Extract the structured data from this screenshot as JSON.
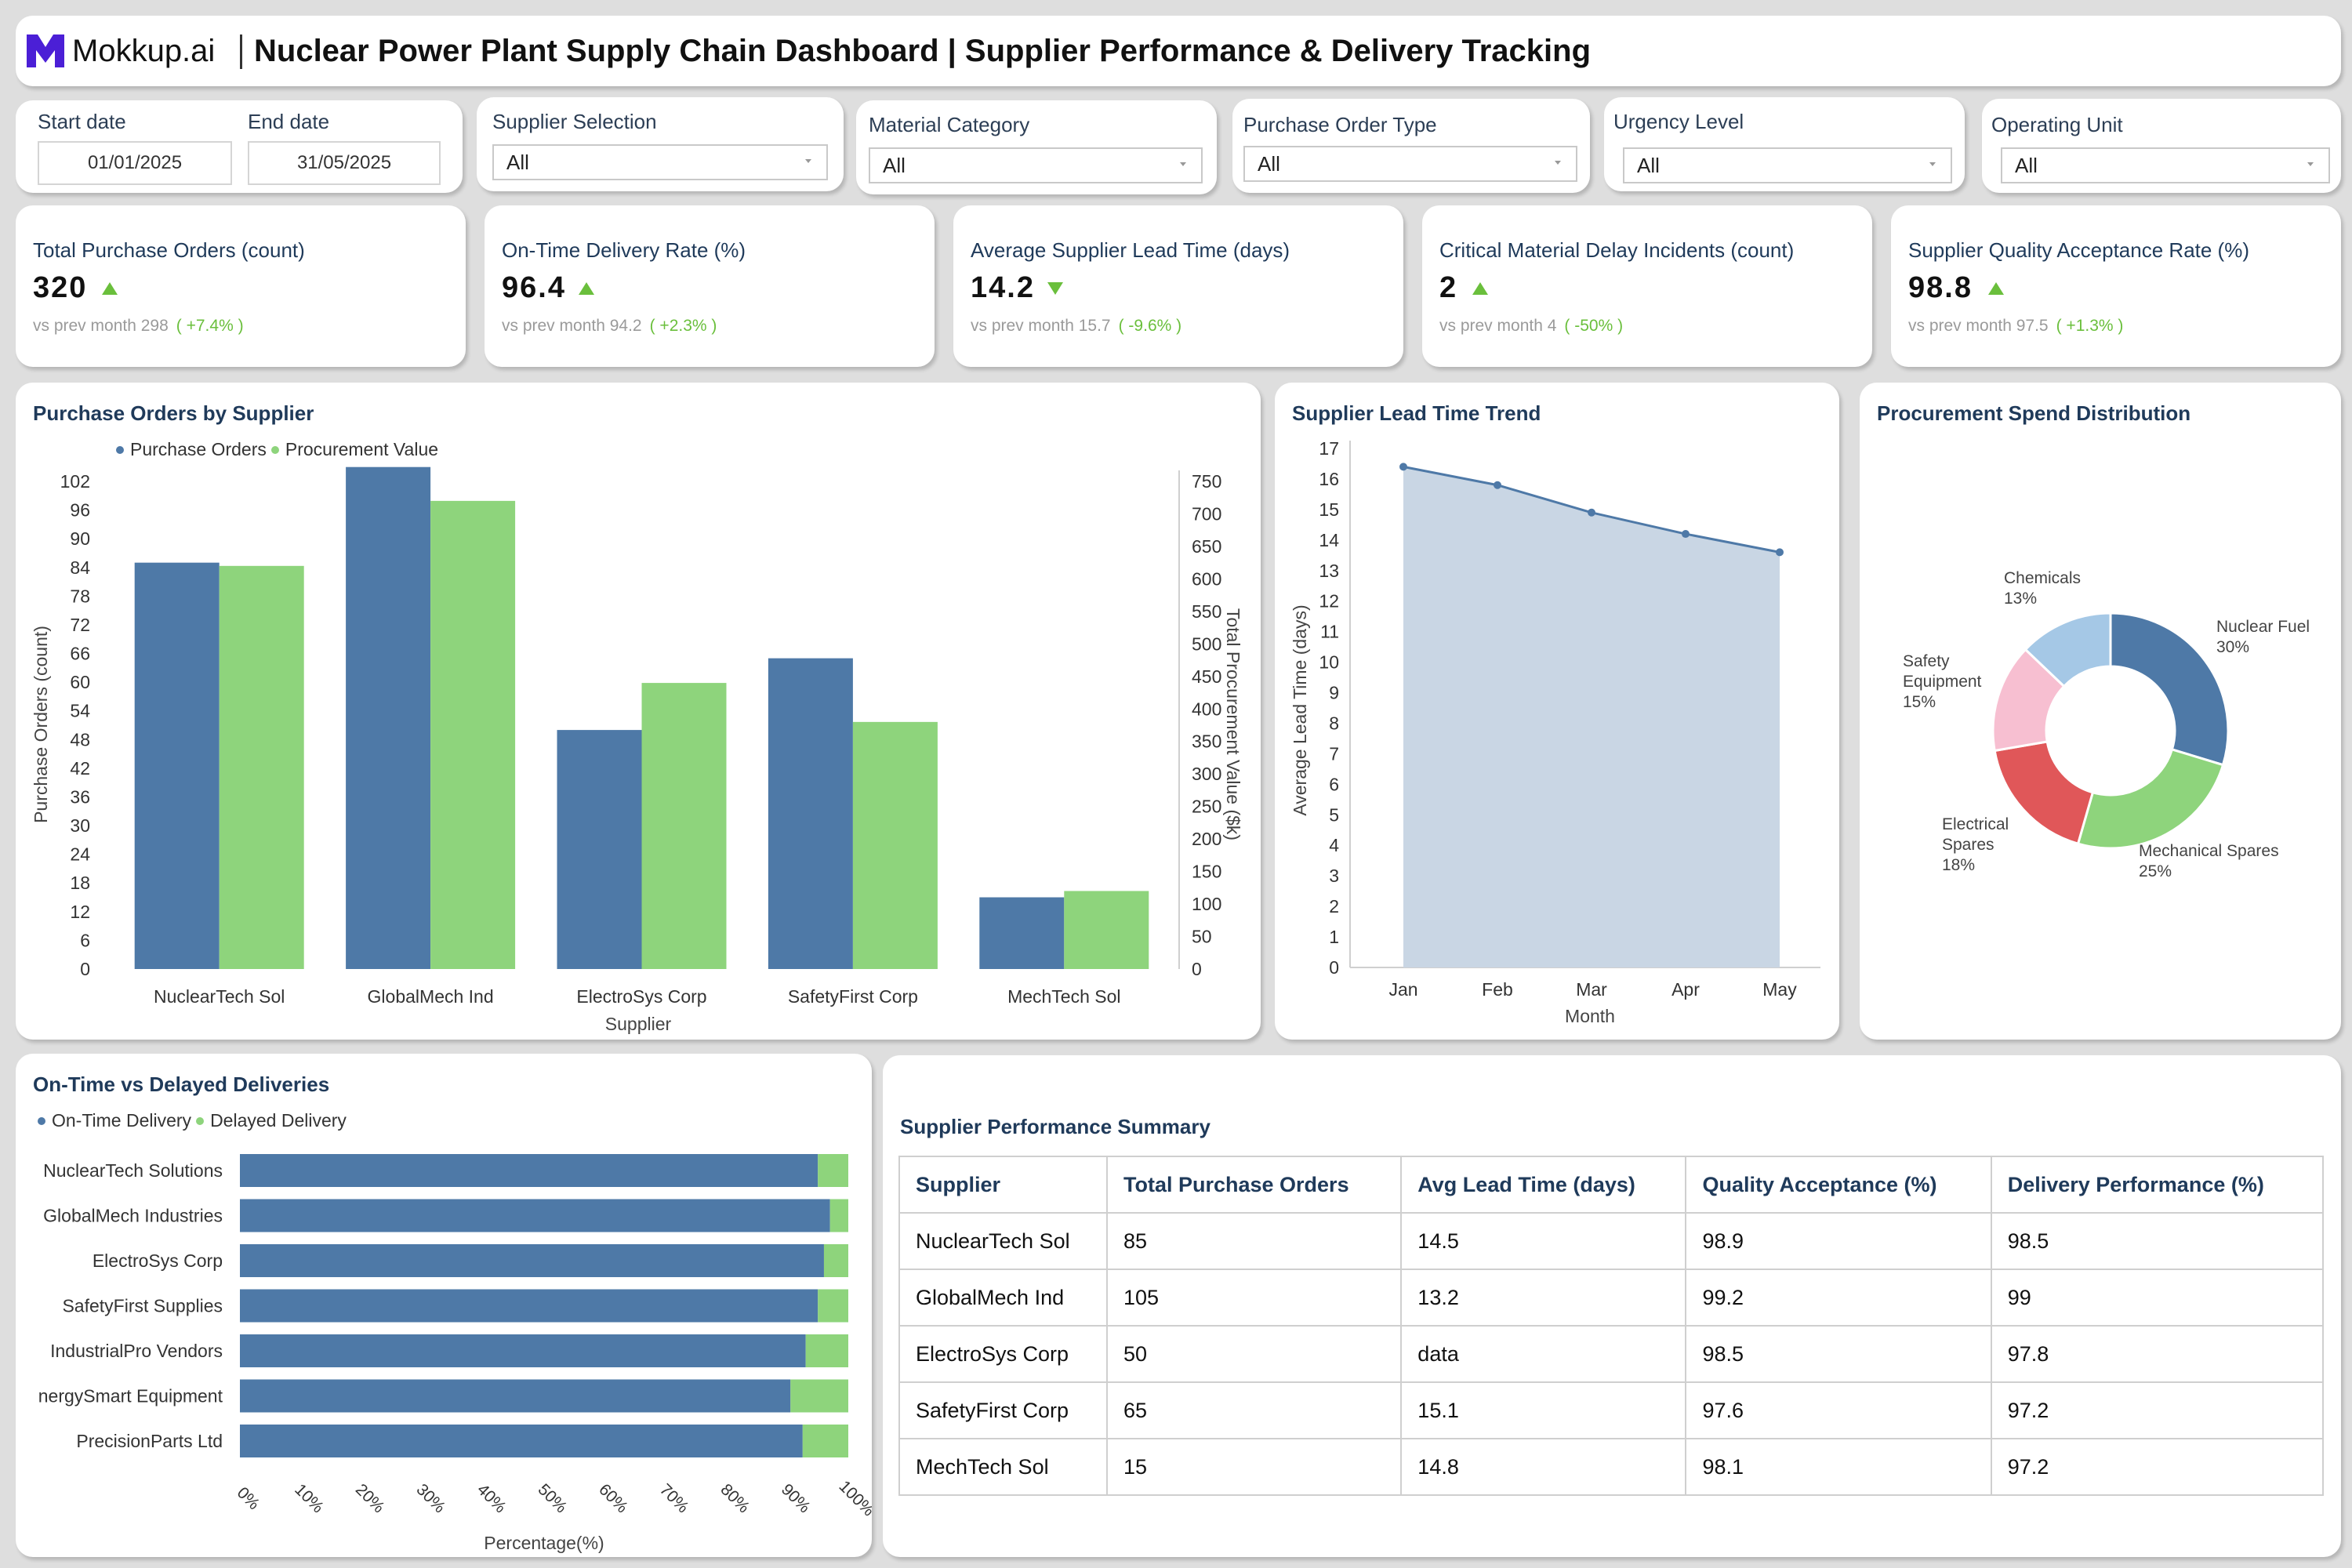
{
  "header": {
    "logo_text": "Mokkup.ai",
    "title": "Nuclear Power Plant Supply Chain Dashboard | Supplier Performance & Delivery Tracking"
  },
  "filters": {
    "start_date_label": "Start date",
    "start_date_value": "01/01/2025",
    "end_date_label": "End date",
    "end_date_value": "31/05/2025",
    "dropdowns": [
      {
        "label": "Supplier Selection",
        "value": "All"
      },
      {
        "label": "Material Category",
        "value": "All"
      },
      {
        "label": "Purchase Order Type",
        "value": "All"
      },
      {
        "label": "Urgency Level",
        "value": "All"
      },
      {
        "label": "Operating Unit",
        "value": "All"
      }
    ]
  },
  "kpis": [
    {
      "title": "Total Purchase Orders (count)",
      "value": "320",
      "trend": "up",
      "prev_label": "vs prev month",
      "prev_value": "298",
      "change": "( +7.4% )"
    },
    {
      "title": "On-Time Delivery Rate (%)",
      "value": "96.4",
      "trend": "up",
      "prev_label": "vs prev month",
      "prev_value": "94.2",
      "change": "( +2.3% )"
    },
    {
      "title": "Average Supplier Lead Time (days)",
      "value": "14.2",
      "trend": "down",
      "prev_label": "vs prev month",
      "prev_value": "15.7",
      "change": "( -9.6% )"
    },
    {
      "title": "Critical Material Delay Incidents (count)",
      "value": "2",
      "trend": "up",
      "prev_label": "vs prev month",
      "prev_value": "4",
      "change": "( -50% )"
    },
    {
      "title": "Supplier Quality Acceptance Rate (%)",
      "value": "98.8",
      "trend": "up",
      "prev_label": "vs prev month",
      "prev_value": "97.5",
      "change": "( +1.3% )"
    }
  ],
  "colors": {
    "blue": "#4e79a7",
    "green": "#8ed47c",
    "area": "#c9d6e4",
    "up": "#6abf3c"
  },
  "chart_data": [
    {
      "type": "bar",
      "title": "Purchase Orders by Supplier",
      "xlabel": "Supplier",
      "ylabel": "Purchase Orders (count)",
      "y2label": "Total Procurement Value ($k)",
      "categories": [
        "NuclearTech Sol",
        "GlobalMech Ind",
        "ElectroSys Corp",
        "SafetyFirst Corp",
        "MechTech Sol"
      ],
      "series": [
        {
          "name": "Purchase Orders",
          "axis": "left",
          "values": [
            85,
            105,
            50,
            65,
            15
          ]
        },
        {
          "name": "Procurement Value",
          "axis": "right",
          "values": [
            620,
            720,
            440,
            380,
            120
          ]
        }
      ],
      "ylim": [
        0,
        102
      ],
      "yticks": [
        0,
        6,
        12,
        18,
        24,
        30,
        36,
        42,
        48,
        54,
        60,
        66,
        72,
        78,
        84,
        90,
        96,
        102
      ],
      "y2lim": [
        0,
        750
      ],
      "y2ticks": [
        0,
        50,
        100,
        150,
        200,
        250,
        300,
        350,
        400,
        450,
        500,
        550,
        600,
        650,
        700,
        750
      ],
      "legend": "top-left"
    },
    {
      "type": "area",
      "title": "Supplier Lead Time Trend",
      "xlabel": "Month",
      "ylabel": "Average Lead Time (days)",
      "categories": [
        "Jan",
        "Feb",
        "Mar",
        "Apr",
        "May"
      ],
      "values": [
        16.4,
        15.8,
        14.9,
        14.2,
        13.6
      ],
      "ylim": [
        0,
        17
      ],
      "yticks": [
        0,
        1,
        2,
        3,
        4,
        5,
        6,
        7,
        8,
        9,
        10,
        11,
        12,
        13,
        14,
        15,
        16,
        17
      ]
    },
    {
      "type": "pie",
      "title": "Procurement Spend Distribution",
      "slices": [
        {
          "label": "Nuclear Fuel",
          "value": 30,
          "pct": "30%",
          "color": "#4e79a7"
        },
        {
          "label": "Mechanical Spares",
          "value": 25,
          "pct": "25%",
          "color": "#8ed47c"
        },
        {
          "label": "Electrical Spares",
          "value": 18,
          "pct": "18%",
          "color": "#e05759"
        },
        {
          "label": "Safety Equipment",
          "value": 15,
          "pct": "15%",
          "color": "#f7bfd1"
        },
        {
          "label": "Chemicals",
          "value": 13,
          "pct": "13%",
          "color": "#a5c8e6"
        }
      ]
    },
    {
      "type": "bar",
      "orientation": "horizontal-stacked",
      "title": "On-Time vs Delayed Deliveries",
      "xlabel": "Percentage(%)",
      "categories": [
        "NuclearTech Solutions",
        "GlobalMech Industries",
        "ElectroSys Corp",
        "SafetyFirst Supplies",
        "IndustrialPro Vendors",
        "nergySmart Equipment",
        "PrecisionParts Ltd"
      ],
      "series": [
        {
          "name": "On-Time Delivery",
          "values": [
            95,
            97,
            96,
            95,
            93,
            90.5,
            92.5
          ]
        },
        {
          "name": "Delayed Delivery",
          "values": [
            5,
            3,
            4,
            5,
            7,
            9.5,
            7.5
          ]
        }
      ],
      "xlim": [
        0,
        100
      ],
      "xticks": [
        "0%",
        "10%",
        "20%",
        "30%",
        "40%",
        "50%",
        "60%",
        "70%",
        "80%",
        "90%",
        "100%"
      ],
      "legend": "top-left"
    }
  ],
  "table": {
    "title": "Supplier Performance Summary",
    "headers": [
      "Supplier",
      "Total Purchase Orders",
      "Avg Lead Time (days)",
      "Quality Acceptance (%)",
      "Delivery Performance (%)"
    ],
    "rows": [
      [
        "NuclearTech Sol",
        "85",
        "14.5",
        "98.9",
        "98.5"
      ],
      [
        "GlobalMech Ind",
        "105",
        "13.2",
        "99.2",
        "99"
      ],
      [
        "ElectroSys Corp",
        "50",
        "data",
        "98.5",
        "97.8"
      ],
      [
        "SafetyFirst Corp",
        "65",
        "15.1",
        "97.6",
        "97.2"
      ],
      [
        "MechTech Sol",
        "15",
        "14.8",
        "98.1",
        "97.2"
      ]
    ]
  }
}
